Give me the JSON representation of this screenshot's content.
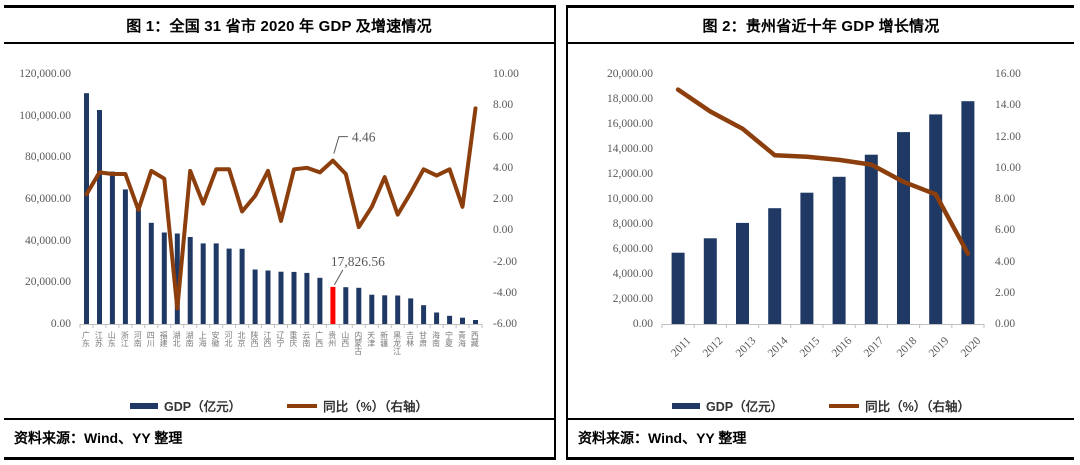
{
  "chart_data": [
    {
      "id": "national-gdp-2020",
      "type": "bar+line",
      "title": "图 1：全国 31 省市 2020 年 GDP 及增速情况",
      "categories": [
        "广东",
        "江苏",
        "山东",
        "浙江",
        "河南",
        "四川",
        "福建",
        "湖北",
        "湖南",
        "上海",
        "安徽",
        "河北",
        "北京",
        "陕西",
        "江西",
        "辽宁",
        "重庆",
        "云南",
        "广西",
        "贵州",
        "山西",
        "内蒙古",
        "天津",
        "新疆",
        "黑龙江",
        "吉林",
        "甘肃",
        "海南",
        "宁夏",
        "青海",
        "西藏"
      ],
      "series": [
        {
          "name": "GDP（亿元）",
          "type": "bar",
          "axis": "left",
          "color": "#1F3864",
          "values": [
            110760.9,
            102719.0,
            73129.0,
            64613.3,
            54997.1,
            48598.8,
            43903.9,
            43443.5,
            41781.5,
            38700.6,
            38680.6,
            36206.9,
            36102.6,
            26181.9,
            25691.5,
            25115.0,
            25002.8,
            24521.9,
            22156.7,
            17826.56,
            17651.9,
            17359.8,
            14083.7,
            13797.6,
            13698.5,
            12311.3,
            9016.7,
            5532.4,
            3920.6,
            3005.9,
            1902.7
          ]
        },
        {
          "name": "同比（%）（右轴）",
          "type": "line",
          "axis": "right",
          "color": "#8C3E0D",
          "values": [
            2.3,
            3.7,
            3.6,
            3.6,
            1.3,
            3.8,
            3.3,
            -5.0,
            3.8,
            1.7,
            3.9,
            3.9,
            1.2,
            2.2,
            3.8,
            0.6,
            3.9,
            4.0,
            3.7,
            4.46,
            3.6,
            0.2,
            1.5,
            3.4,
            1.0,
            2.4,
            3.9,
            3.5,
            3.9,
            1.5,
            7.8
          ]
        }
      ],
      "highlight": {
        "index": 19,
        "color": "#FF0000"
      },
      "annotations": [
        {
          "text": "4.46",
          "target": "line",
          "index": 19
        },
        {
          "text": "17,826.56",
          "target": "bar",
          "index": 19
        }
      ],
      "left_axis": {
        "min": 0,
        "max": 120000,
        "ticks": [
          "120,000.00",
          "100,000.00",
          "80,000.00",
          "60,000.00",
          "40,000.00",
          "20,000.00",
          "0.00"
        ]
      },
      "right_axis": {
        "min": -6,
        "max": 10,
        "ticks": [
          "10.00",
          "8.00",
          "6.00",
          "4.00",
          "2.00",
          "0.00",
          "-2.00",
          "-4.00",
          "-6.00"
        ]
      },
      "grid": "off",
      "legend_position": "bottom",
      "source_label": "资料来源：",
      "source_value": "Wind、YY 整理"
    },
    {
      "id": "guizhou-gdp-decade",
      "type": "bar+line",
      "title": "图 2：贵州省近十年 GDP 增长情况",
      "categories": [
        "2011",
        "2012",
        "2013",
        "2014",
        "2015",
        "2016",
        "2017",
        "2018",
        "2019",
        "2020"
      ],
      "series": [
        {
          "name": "GDP（亿元）",
          "type": "bar",
          "axis": "left",
          "color": "#1F3864",
          "values": [
            5701.8,
            6852.2,
            8086.9,
            9266.4,
            10502.6,
            11776.7,
            13540.8,
            15353.2,
            16769.3,
            17826.56
          ]
        },
        {
          "name": "同比（%）（右轴）",
          "type": "line",
          "axis": "right",
          "color": "#8C3E0D",
          "values": [
            15.0,
            13.6,
            12.5,
            10.8,
            10.7,
            10.5,
            10.2,
            9.1,
            8.3,
            4.5
          ]
        }
      ],
      "left_axis": {
        "min": 0,
        "max": 20000,
        "ticks": [
          "20,000.00",
          "18,000.00",
          "16,000.00",
          "14,000.00",
          "12,000.00",
          "10,000.00",
          "8,000.00",
          "6,000.00",
          "4,000.00",
          "2,000.00",
          "0.00"
        ]
      },
      "right_axis": {
        "min": 0,
        "max": 16,
        "ticks": [
          "16.00",
          "14.00",
          "12.00",
          "10.00",
          "8.00",
          "6.00",
          "4.00",
          "2.00",
          "0.00"
        ]
      },
      "grid": "off",
      "legend_position": "bottom",
      "source_label": "资料来源：",
      "source_value": "Wind、YY 整理"
    }
  ]
}
